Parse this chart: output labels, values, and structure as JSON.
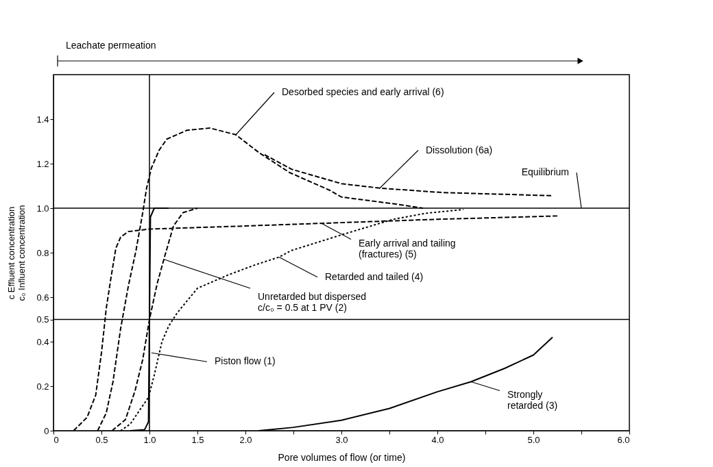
{
  "chart_data": {
    "type": "line",
    "xlabel": "Pore volumes of flow (or time)",
    "ylabel": "c Effluent concentration\nc₀ Influent concentration",
    "xlim": [
      0,
      6
    ],
    "ylim": [
      0,
      1.6
    ],
    "xticks": [
      0,
      0.5,
      {
        "value": 1,
        "label": "1.0"
      },
      1.5,
      {
        "value": 2,
        "label": "2.0"
      },
      {
        "value": 2.5,
        "label": null
      },
      {
        "value": 3,
        "label": "3.0"
      },
      {
        "value": 3.5,
        "label": null
      },
      {
        "value": 4,
        "label": "4.0"
      },
      {
        "value": 4.5,
        "label": null
      },
      {
        "value": 5,
        "label": "5.0"
      },
      {
        "value": 5.5,
        "label": null
      },
      {
        "value": 6,
        "label": "6.0"
      }
    ],
    "yticks": [
      0,
      0.2,
      0.4,
      0.5,
      0.6,
      0.8,
      {
        "value": 1,
        "label": "1.0"
      },
      1.2,
      1.4
    ],
    "grid": false,
    "marker": "none",
    "ref_lines": [
      {
        "axis": "x",
        "value": 1,
        "color": "#000000",
        "line_style": "solid"
      },
      {
        "axis": "y",
        "value": 1,
        "color": "#000000",
        "line_style": "solid"
      },
      {
        "axis": "y",
        "value": 0.5,
        "color": "#000000",
        "line_style": "solid"
      }
    ],
    "series": [
      {
        "color": "#000000",
        "line_style": "solid",
        "x": [
          0.8,
          0.95,
          0.99,
          1.0,
          1.01,
          1.05,
          1.2
        ],
        "values": [
          0,
          0.005,
          0.04,
          0.5,
          0.96,
          1.0,
          1.0
        ]
      },
      {
        "color": "#000000",
        "line_style": "dashed",
        "x": [
          0.61,
          0.75,
          0.85,
          0.93,
          1.0,
          1.08,
          1.15,
          1.25,
          1.35,
          1.5
        ],
        "values": [
          0,
          0.05,
          0.18,
          0.32,
          0.5,
          0.66,
          0.77,
          0.92,
          0.98,
          1.0
        ]
      },
      {
        "color": "#000000",
        "line_style": "solid",
        "x": [
          2.14,
          2.5,
          3.0,
          3.5,
          4.0,
          4.35,
          4.7,
          5.0,
          5.2
        ],
        "values": [
          0,
          0.015,
          0.047,
          0.1,
          0.175,
          0.22,
          0.28,
          0.34,
          0.42
        ]
      },
      {
        "color": "#000000",
        "line_style": "dotted",
        "x": [
          0.7,
          0.8,
          0.91,
          0.99,
          1.05,
          1.13,
          1.2,
          1.29,
          1.5,
          1.82,
          2.1,
          2.35,
          2.48,
          3.0,
          3.54,
          3.88,
          4.27
        ],
        "values": [
          0,
          0.03,
          0.1,
          0.15,
          0.25,
          0.4,
          0.47,
          0.53,
          0.64,
          0.7,
          0.745,
          0.78,
          0.81,
          0.88,
          0.95,
          0.977,
          0.994
        ]
      },
      {
        "color": "#000000",
        "line_style": "dashed",
        "x": [
          0.21,
          0.35,
          0.44,
          0.5,
          0.55,
          0.6,
          0.65,
          0.7,
          0.78,
          1.0,
          2.0,
          3.0,
          4.0,
          5.25
        ],
        "values": [
          0,
          0.06,
          0.16,
          0.35,
          0.55,
          0.69,
          0.82,
          0.87,
          0.895,
          0.906,
          0.92,
          0.935,
          0.95,
          0.965
        ]
      },
      {
        "color": "#000000",
        "line_style": "dashed",
        "x": [
          0.46,
          0.55,
          0.62,
          0.7,
          0.78,
          0.86,
          0.93,
          0.97,
          1.02,
          1.1,
          1.18,
          1.39,
          1.63,
          1.9,
          2.14,
          2.46,
          2.88,
          3.0,
          3.54,
          3.85
        ],
        "values": [
          0,
          0.08,
          0.22,
          0.46,
          0.65,
          0.81,
          0.98,
          1.09,
          1.18,
          1.26,
          1.31,
          1.35,
          1.36,
          1.33,
          1.25,
          1.16,
          1.08,
          1.05,
          1.02,
          1.0
        ]
      },
      {
        "color": "#000000",
        "line_style": "dashed",
        "x": [
          2.2,
          2.48,
          3.0,
          3.4,
          4.06,
          5.2
        ],
        "values": [
          1.24,
          1.175,
          1.11,
          1.09,
          1.07,
          1.056
        ]
      }
    ],
    "annotations": [
      {
        "text": "Desorbed species and early arrival (6)",
        "x": 1.9,
        "y": 1.33
      },
      {
        "text": "Dissolution (6a)",
        "x": 3.4,
        "y": 1.09
      },
      {
        "text": "Equilibrium",
        "x": 5.5,
        "y": 1.0
      },
      {
        "text": "Early arrival and tailing\n(fractures) (5)",
        "x": 2.8,
        "y": 0.93
      },
      {
        "text": "Retarded and tailed (4)",
        "x": 2.35,
        "y": 0.78
      },
      {
        "text": "Unretarded but dispersed\nc/c₀ = 0.5 at 1 PV (2)",
        "x": 1.15,
        "y": 0.77
      },
      {
        "text": "Piston flow (1)",
        "x": 1.02,
        "y": 0.35
      },
      {
        "text": "Strongly\nretarded (3)",
        "x": 4.35,
        "y": 0.22
      },
      "Leachate permeation"
    ]
  }
}
